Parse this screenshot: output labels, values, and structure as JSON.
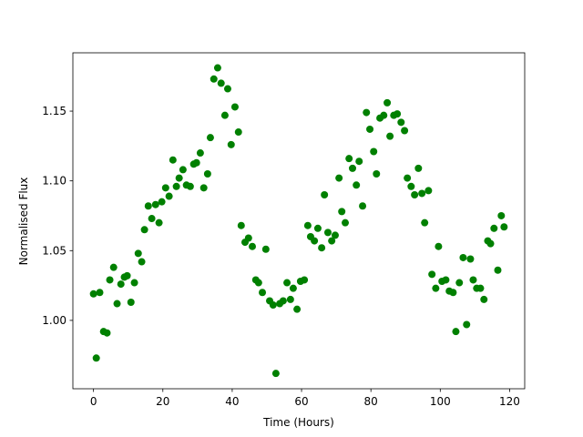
{
  "chart_data": {
    "type": "scatter",
    "xlabel": "Time (Hours)",
    "ylabel": "Normalised Flux",
    "color": "#008000",
    "x": [
      0,
      0.8,
      1.8,
      2.9,
      3.9,
      4.7,
      5.8,
      6.8,
      7.9,
      8.9,
      9.7,
      10.8,
      11.8,
      12.9,
      13.9,
      14.7,
      15.8,
      16.8,
      17.9,
      18.9,
      19.7,
      20.8,
      21.8,
      22.9,
      23.9,
      24.7,
      25.8,
      26.8,
      27.9,
      28.9,
      29.7,
      30.8,
      31.8,
      32.9,
      33.7,
      34.7,
      35.8,
      36.8,
      37.9,
      38.7,
      39.7,
      40.8,
      41.8,
      42.6,
      43.7,
      44.7,
      45.8,
      46.8,
      47.6,
      48.7,
      49.7,
      50.8,
      51.8,
      52.6,
      53.7,
      54.7,
      55.8,
      56.8,
      57.6,
      58.7,
      59.7,
      60.8,
      61.8,
      62.6,
      63.7,
      64.7,
      65.8,
      66.6,
      67.6,
      68.7,
      69.7,
      70.8,
      71.6,
      72.6,
      73.7,
      74.7,
      75.8,
      76.6,
      77.6,
      78.7,
      79.7,
      80.8,
      81.6,
      82.6,
      83.7,
      84.7,
      85.5,
      86.6,
      87.6,
      88.7,
      89.7,
      90.5,
      91.6,
      92.6,
      93.7,
      94.7,
      95.5,
      96.6,
      97.6,
      98.7,
      99.5,
      100.5,
      101.6,
      102.6,
      103.7,
      104.5,
      105.5,
      106.6,
      107.6,
      108.7,
      109.5,
      110.5,
      111.6,
      112.6,
      113.7,
      114.5,
      115.5,
      116.6,
      117.6,
      118.4
    ],
    "values": [
      1.019,
      0.973,
      1.02,
      0.992,
      0.991,
      1.029,
      1.038,
      1.012,
      1.026,
      1.031,
      1.032,
      1.013,
      1.027,
      1.048,
      1.042,
      1.065,
      1.082,
      1.073,
      1.083,
      1.07,
      1.085,
      1.095,
      1.089,
      1.115,
      1.096,
      1.102,
      1.108,
      1.097,
      1.096,
      1.112,
      1.113,
      1.12,
      1.095,
      1.105,
      1.131,
      1.173,
      1.181,
      1.17,
      1.147,
      1.166,
      1.126,
      1.153,
      1.135,
      1.068,
      1.056,
      1.059,
      1.053,
      1.029,
      1.027,
      1.02,
      1.051,
      1.014,
      1.011,
      0.962,
      1.012,
      1.014,
      1.027,
      1.015,
      1.023,
      1.008,
      1.028,
      1.029,
      1.068,
      1.06,
      1.057,
      1.066,
      1.052,
      1.09,
      1.063,
      1.057,
      1.061,
      1.102,
      1.078,
      1.07,
      1.116,
      1.109,
      1.097,
      1.114,
      1.082,
      1.149,
      1.137,
      1.121,
      1.105,
      1.145,
      1.147,
      1.156,
      1.132,
      1.147,
      1.148,
      1.142,
      1.136,
      1.102,
      1.096,
      1.09,
      1.109,
      1.091,
      1.07,
      1.093,
      1.033,
      1.023,
      1.053,
      1.028,
      1.029,
      1.021,
      1.02,
      0.992,
      1.027,
      1.045,
      0.997,
      1.044,
      1.029,
      1.023,
      1.023,
      1.015,
      1.057,
      1.055,
      1.066,
      1.036,
      1.075,
      1.067
    ],
    "xlim": [
      -5.95,
      124.35
    ],
    "ylim": [
      0.951,
      1.1918
    ],
    "xticks": [
      0,
      20,
      40,
      60,
      80,
      100,
      120
    ],
    "yticks": [
      {
        "value": 1.0,
        "label": "1.00"
      },
      1.05,
      {
        "value": 1.1,
        "label": "1.10"
      },
      1.15
    ]
  }
}
